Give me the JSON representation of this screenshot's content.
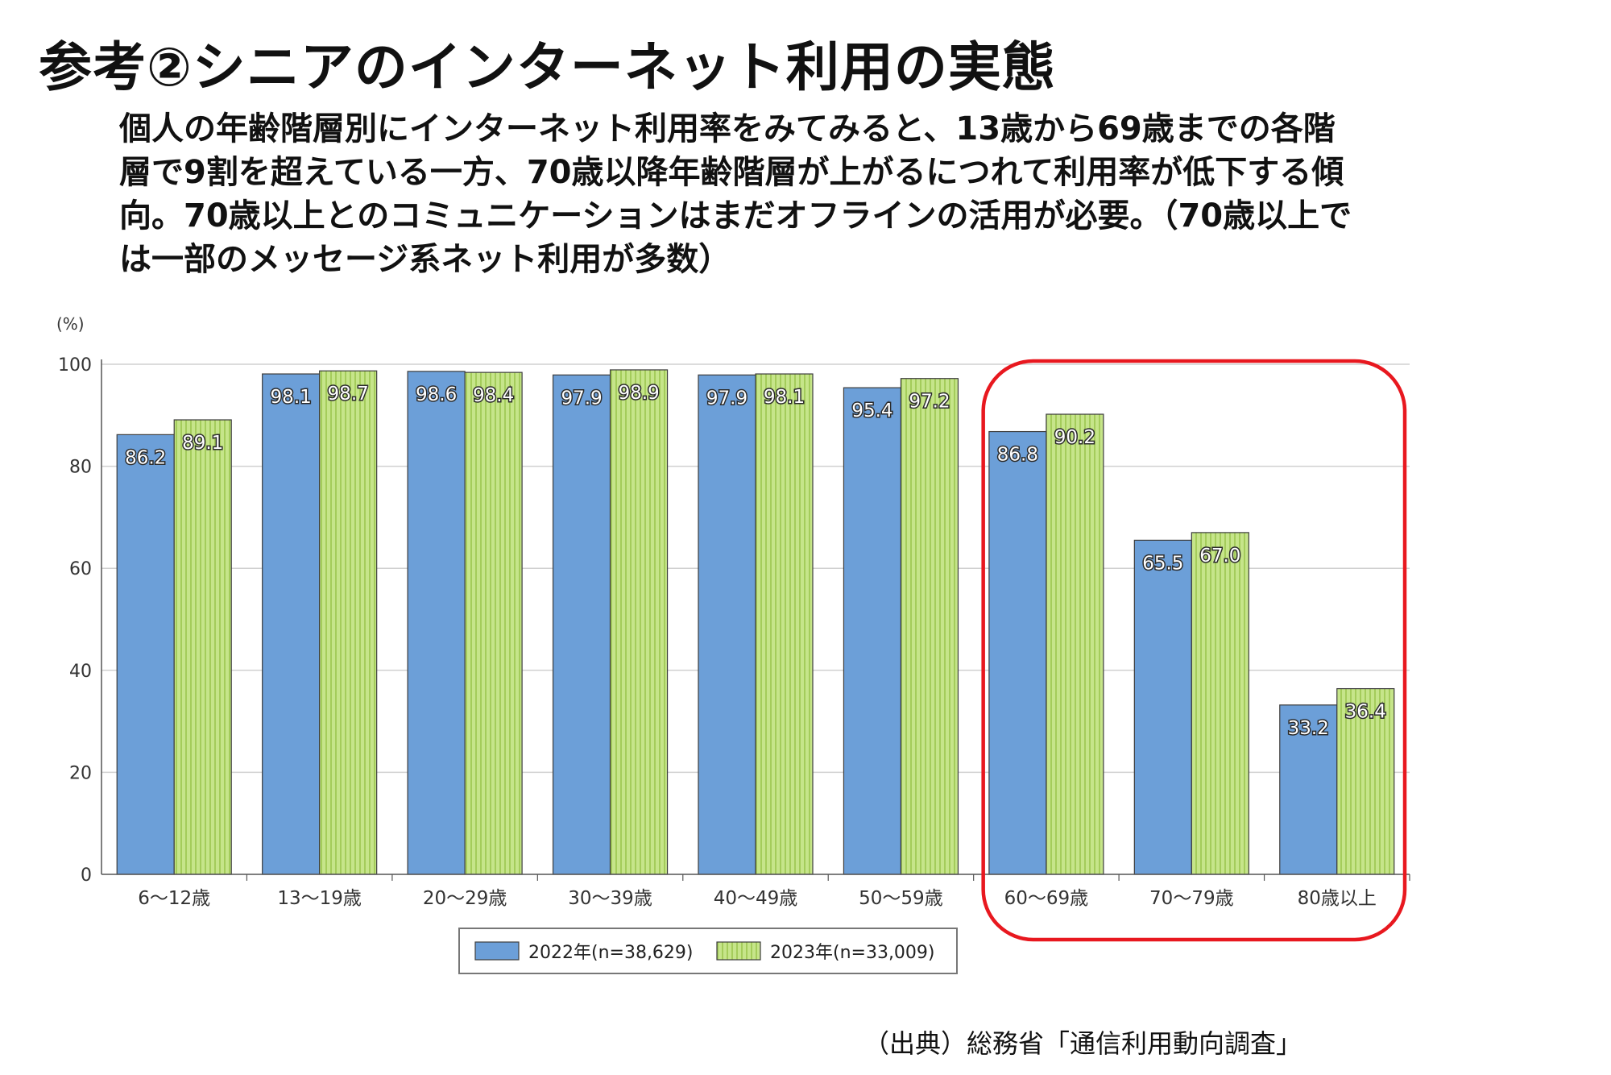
{
  "slide": {
    "title": "参考②シニアのインターネット利用の実態",
    "description": "個人の年齢階層別にインターネット利用率をみてみると、13歳から69歳までの各階層で9割を超えている一方、70歳以降年齢階層が上がるにつれて利用率が低下する傾向。70歳以上とのコミュニケーションはまだオフラインの活用が必要。（70歳以上では一部のメッセージ系ネット利用が多数）",
    "source": "（出典）総務省「通信利用動向調査」"
  },
  "chart_data": {
    "type": "bar",
    "title": "",
    "xlabel": "",
    "ylabel": "(%)",
    "ylim": [
      0,
      100
    ],
    "yticks": [
      0,
      20,
      40,
      60,
      80,
      100
    ],
    "grid": true,
    "legend_position": "bottom-center",
    "categories": [
      "6～12歳",
      "13～19歳",
      "20～29歳",
      "30～39歳",
      "40～49歳",
      "50～59歳",
      "60～69歳",
      "70～79歳",
      "80歳以上"
    ],
    "series": [
      {
        "name": "2022年(n=38,629)",
        "values": [
          86.2,
          98.1,
          98.6,
          97.9,
          97.9,
          95.4,
          86.8,
          65.5,
          33.2
        ],
        "color": "#6c9fd8"
      },
      {
        "name": "2023年(n=33,009)",
        "values": [
          89.1,
          98.7,
          98.4,
          98.9,
          98.1,
          97.2,
          90.2,
          67.0,
          36.4
        ],
        "color": "#c6e58a"
      }
    ],
    "highlight_categories": [
      "60～69歳",
      "70～79歳",
      "80歳以上"
    ],
    "highlight_color": "#e8181f"
  }
}
